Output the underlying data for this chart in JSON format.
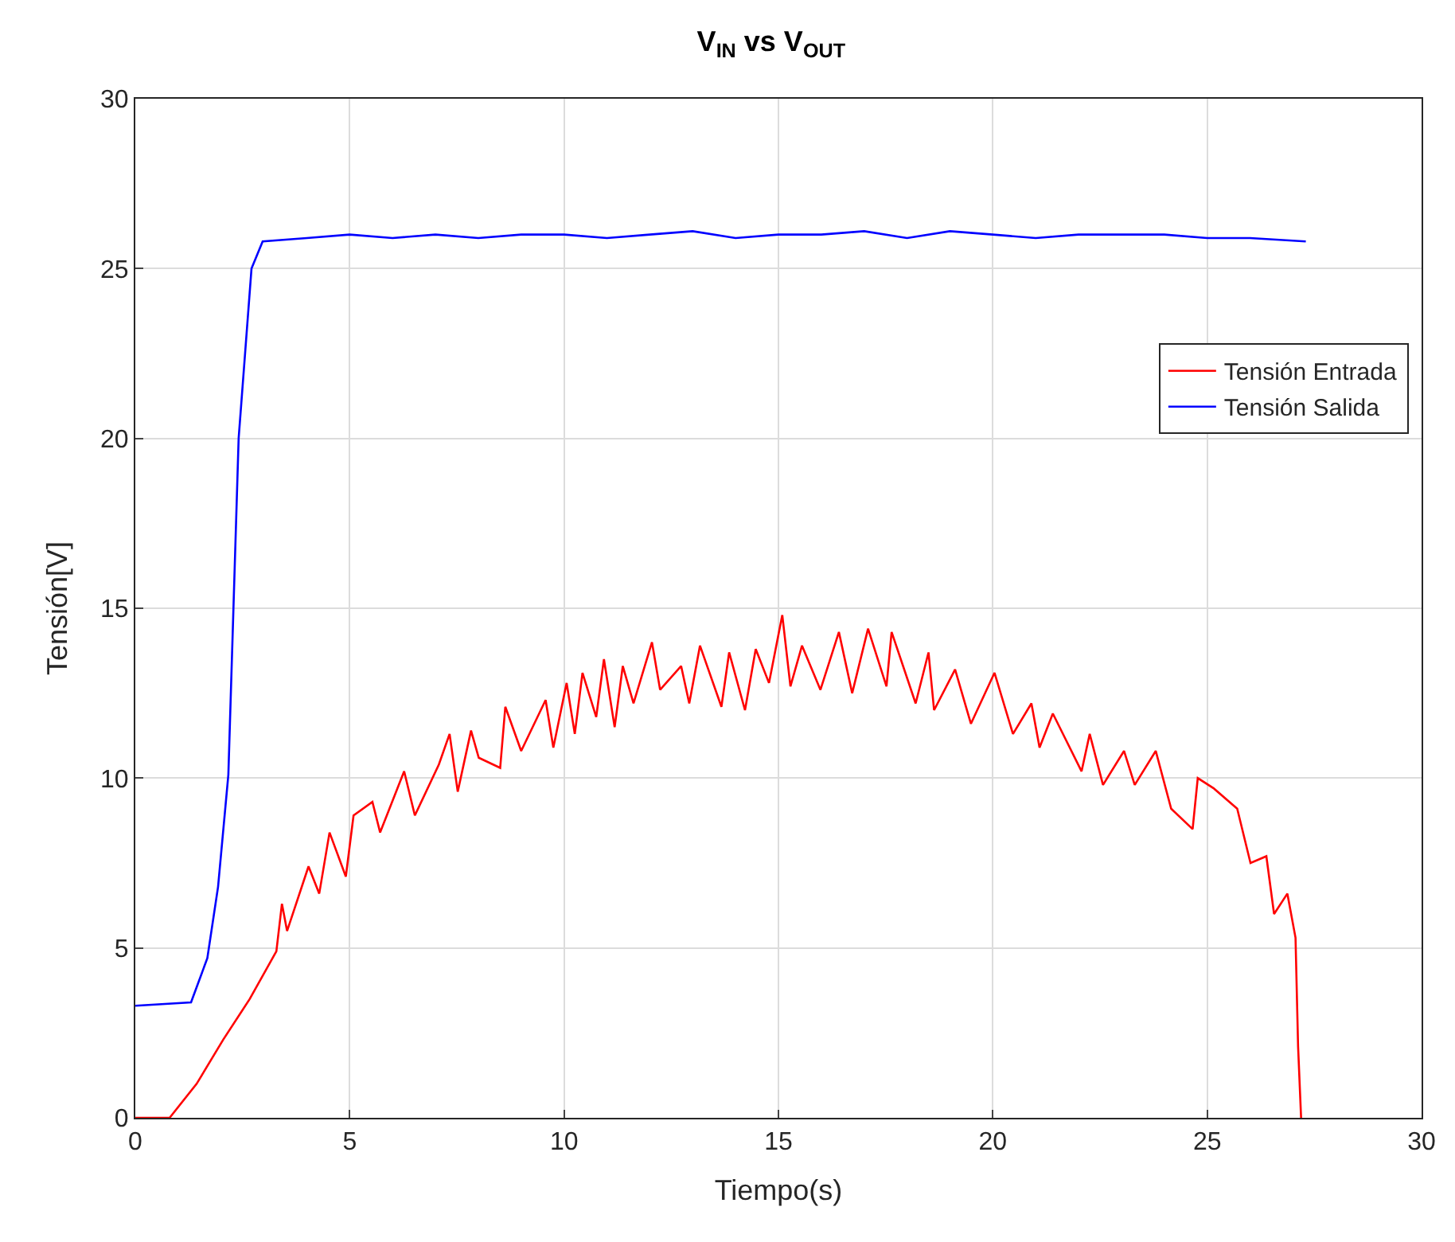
{
  "chart_data": {
    "type": "line",
    "title": "V$_{IN}$ vs V$_{OUT}$",
    "xlabel": "Tiempo(s)",
    "ylabel": "Tensión[V]",
    "xlim": [
      0,
      30
    ],
    "ylim": [
      0,
      30
    ],
    "xticks": [
      0,
      5,
      10,
      15,
      20,
      25,
      30
    ],
    "yticks": [
      0,
      5,
      10,
      15,
      20,
      25,
      30
    ],
    "grid": true,
    "legend": "top right",
    "line_style": "solid",
    "series": [
      {
        "name": "Tensión Entrada",
        "color": "#ff0000",
        "x": [
          0,
          0.8,
          1.43,
          2.05,
          2.67,
          3.29,
          3.42,
          3.54,
          4.04,
          4.29,
          4.53,
          4.91,
          5.09,
          5.53,
          5.71,
          6.27,
          6.52,
          7.08,
          7.33,
          7.52,
          7.83,
          8.01,
          8.51,
          8.63,
          9.0,
          9.57,
          9.75,
          10.06,
          10.25,
          10.43,
          10.75,
          10.93,
          11.18,
          11.37,
          11.62,
          12.05,
          12.24,
          12.73,
          12.92,
          13.17,
          13.67,
          13.85,
          14.22,
          14.47,
          14.78,
          15.09,
          15.28,
          15.55,
          15.98,
          16.41,
          16.72,
          17.09,
          17.52,
          17.64,
          18.2,
          18.5,
          18.63,
          19.12,
          19.49,
          20.04,
          20.47,
          20.9,
          21.09,
          21.4,
          22.07,
          22.26,
          22.57,
          23.06,
          23.31,
          23.8,
          24.16,
          24.66,
          24.78,
          25.15,
          25.7,
          26.01,
          26.38,
          26.56,
          26.87,
          27.06,
          27.12,
          27.19
        ],
        "values": [
          0,
          0,
          1.0,
          2.3,
          3.5,
          4.9,
          6.3,
          5.5,
          7.4,
          6.6,
          8.4,
          7.1,
          8.9,
          9.3,
          8.4,
          10.2,
          8.9,
          10.4,
          11.3,
          9.6,
          11.4,
          10.6,
          10.3,
          12.1,
          10.8,
          12.3,
          10.9,
          12.8,
          11.3,
          13.1,
          11.8,
          13.5,
          11.5,
          13.3,
          12.2,
          14.0,
          12.6,
          13.3,
          12.2,
          13.9,
          12.1,
          13.7,
          12.0,
          13.8,
          12.8,
          14.8,
          12.7,
          13.9,
          12.6,
          14.3,
          12.5,
          14.4,
          12.7,
          14.3,
          12.2,
          13.7,
          12.0,
          13.2,
          11.6,
          13.1,
          11.3,
          12.2,
          10.9,
          11.9,
          10.2,
          11.3,
          9.8,
          10.8,
          9.8,
          10.8,
          9.1,
          8.5,
          10.0,
          9.7,
          9.1,
          7.5,
          7.7,
          6.0,
          6.6,
          5.3,
          2.1,
          0
        ]
      },
      {
        "name": "Tensión Salida",
        "color": "#0000ff",
        "x": [
          0,
          1.3,
          1.68,
          1.93,
          2.17,
          2.41,
          2.71,
          2.97,
          4,
          5,
          6,
          7,
          8,
          9,
          10,
          11,
          12,
          13,
          14,
          15,
          16,
          17,
          18,
          19,
          20,
          21,
          22,
          23,
          24,
          25,
          26,
          27.3
        ],
        "values": [
          3.3,
          3.4,
          4.7,
          6.8,
          10.1,
          20.0,
          25.0,
          25.8,
          25.9,
          26.0,
          25.9,
          26.0,
          25.9,
          26.0,
          26.0,
          25.9,
          26.0,
          26.1,
          25.9,
          26.0,
          26.0,
          26.1,
          25.9,
          26.1,
          26.0,
          25.9,
          26.0,
          26.0,
          26.0,
          25.9,
          25.9,
          25.8
        ]
      }
    ]
  }
}
